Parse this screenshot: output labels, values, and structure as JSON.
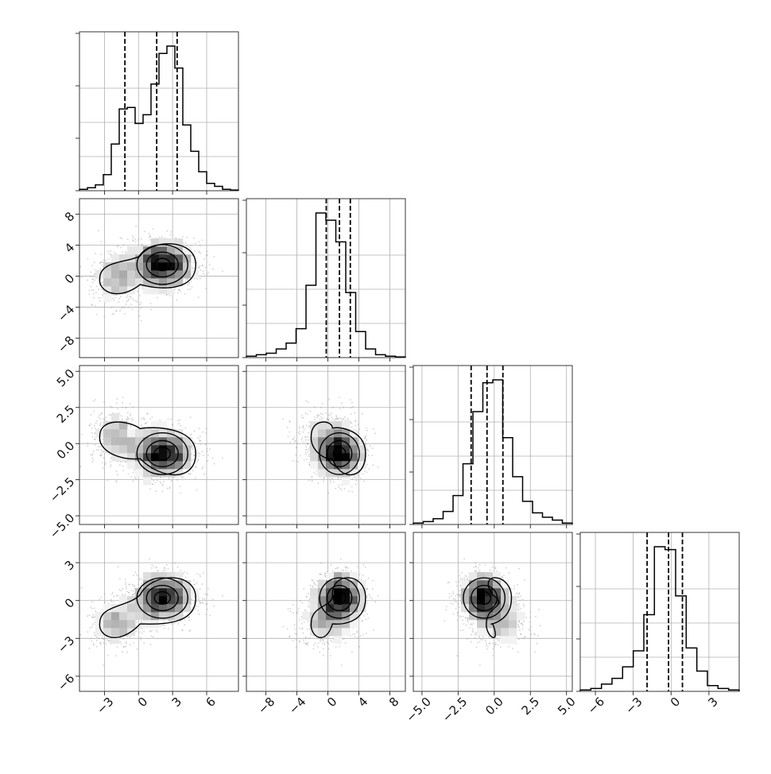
{
  "chart_data": {
    "type": "corner",
    "grid": true,
    "parameters": [
      {
        "range": [
          -5.2,
          8.8
        ],
        "ticks": [
          -3,
          0,
          3,
          6
        ],
        "tick_labels": [
          "−3",
          "0",
          "3",
          "6"
        ],
        "quantiles": [
          -1.2,
          1.6,
          3.4
        ],
        "mode1": [
          -1.8,
          1.2,
          0.25
        ],
        "mode2": [
          2.1,
          1.4,
          0.75
        ]
      },
      {
        "range": [
          -10.5,
          10.0
        ],
        "ticks": [
          -8,
          -4,
          0,
          4,
          8
        ],
        "tick_labels": [
          "−8",
          "−4",
          "0",
          "4",
          "8"
        ],
        "quantiles": [
          -0.2,
          1.5,
          2.9
        ],
        "mode1": [
          -0.3,
          1.9,
          0.25
        ],
        "mode2": [
          1.5,
          1.6,
          0.75
        ]
      },
      {
        "range": [
          -5.6,
          5.4
        ],
        "ticks": [
          -5,
          -2.5,
          0,
          2.5,
          5
        ],
        "tick_labels": [
          "−5.0",
          "−2.5",
          "0.0",
          "2.5",
          "5.0"
        ],
        "quantiles": [
          -1.6,
          -0.5,
          0.6
        ],
        "mode1": [
          0.5,
          1.0,
          0.25
        ],
        "mode2": [
          -0.7,
          0.9,
          0.75
        ]
      },
      {
        "range": [
          -7.2,
          5.4
        ],
        "ticks": [
          -6,
          -3,
          0,
          3
        ],
        "tick_labels": [
          "−6",
          "−3",
          "0",
          "3"
        ],
        "quantiles": [
          -1.9,
          -0.2,
          0.9
        ],
        "mode1": [
          -1.8,
          1.0,
          0.25
        ],
        "mode2": [
          0.2,
          1.0,
          0.75
        ]
      }
    ],
    "histogram_bin_counts": [
      [
        0.01,
        0.02,
        0.04,
        0.11,
        0.32,
        0.56,
        0.57,
        0.46,
        0.52,
        0.73,
        0.94,
        0.99,
        0.84,
        0.45,
        0.27,
        0.13,
        0.05,
        0.03,
        0.01,
        0.005
      ],
      [
        0.01,
        0.02,
        0.03,
        0.06,
        0.1,
        0.2,
        0.5,
        1.0,
        0.95,
        0.8,
        0.45,
        0.18,
        0.06,
        0.02,
        0.01,
        0.005
      ],
      [
        0.01,
        0.02,
        0.04,
        0.09,
        0.2,
        0.42,
        0.78,
        0.98,
        1.0,
        0.6,
        0.33,
        0.16,
        0.08,
        0.05,
        0.03,
        0.01
      ],
      [
        0.01,
        0.02,
        0.05,
        0.09,
        0.17,
        0.28,
        0.53,
        1.0,
        0.98,
        0.66,
        0.3,
        0.14,
        0.04,
        0.02,
        0.01
      ]
    ]
  }
}
